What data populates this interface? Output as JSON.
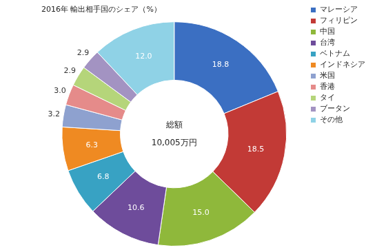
{
  "chart_data": {
    "type": "doughnut",
    "title": "2016年 輸出相手国のシェア（%）",
    "categories": [
      "マレーシア",
      "フィリピン",
      "中国",
      "台湾",
      "ベトナム",
      "インドネシア",
      "米国",
      "香港",
      "タイ",
      "ブータン",
      "その他"
    ],
    "values": [
      18.8,
      18.5,
      15.0,
      10.6,
      6.8,
      6.3,
      3.2,
      3.0,
      2.9,
      2.9,
      12.0
    ],
    "value_labels": [
      "18.8",
      "18.5",
      "15.0",
      "10.6",
      "6.8",
      "6.3",
      "3.2",
      "3.0",
      "2.9",
      "2.9",
      "12.0"
    ],
    "colors": [
      "#3b6fc2",
      "#c23a36",
      "#8fb83b",
      "#6e4c9b",
      "#38a2c3",
      "#ef8a22",
      "#8ea1cf",
      "#e58b8a",
      "#b5d57a",
      "#a393c2",
      "#8fd2e6"
    ],
    "data_labels": true,
    "legend": "right",
    "annotations": [
      "総額",
      "10,005万円"
    ]
  }
}
